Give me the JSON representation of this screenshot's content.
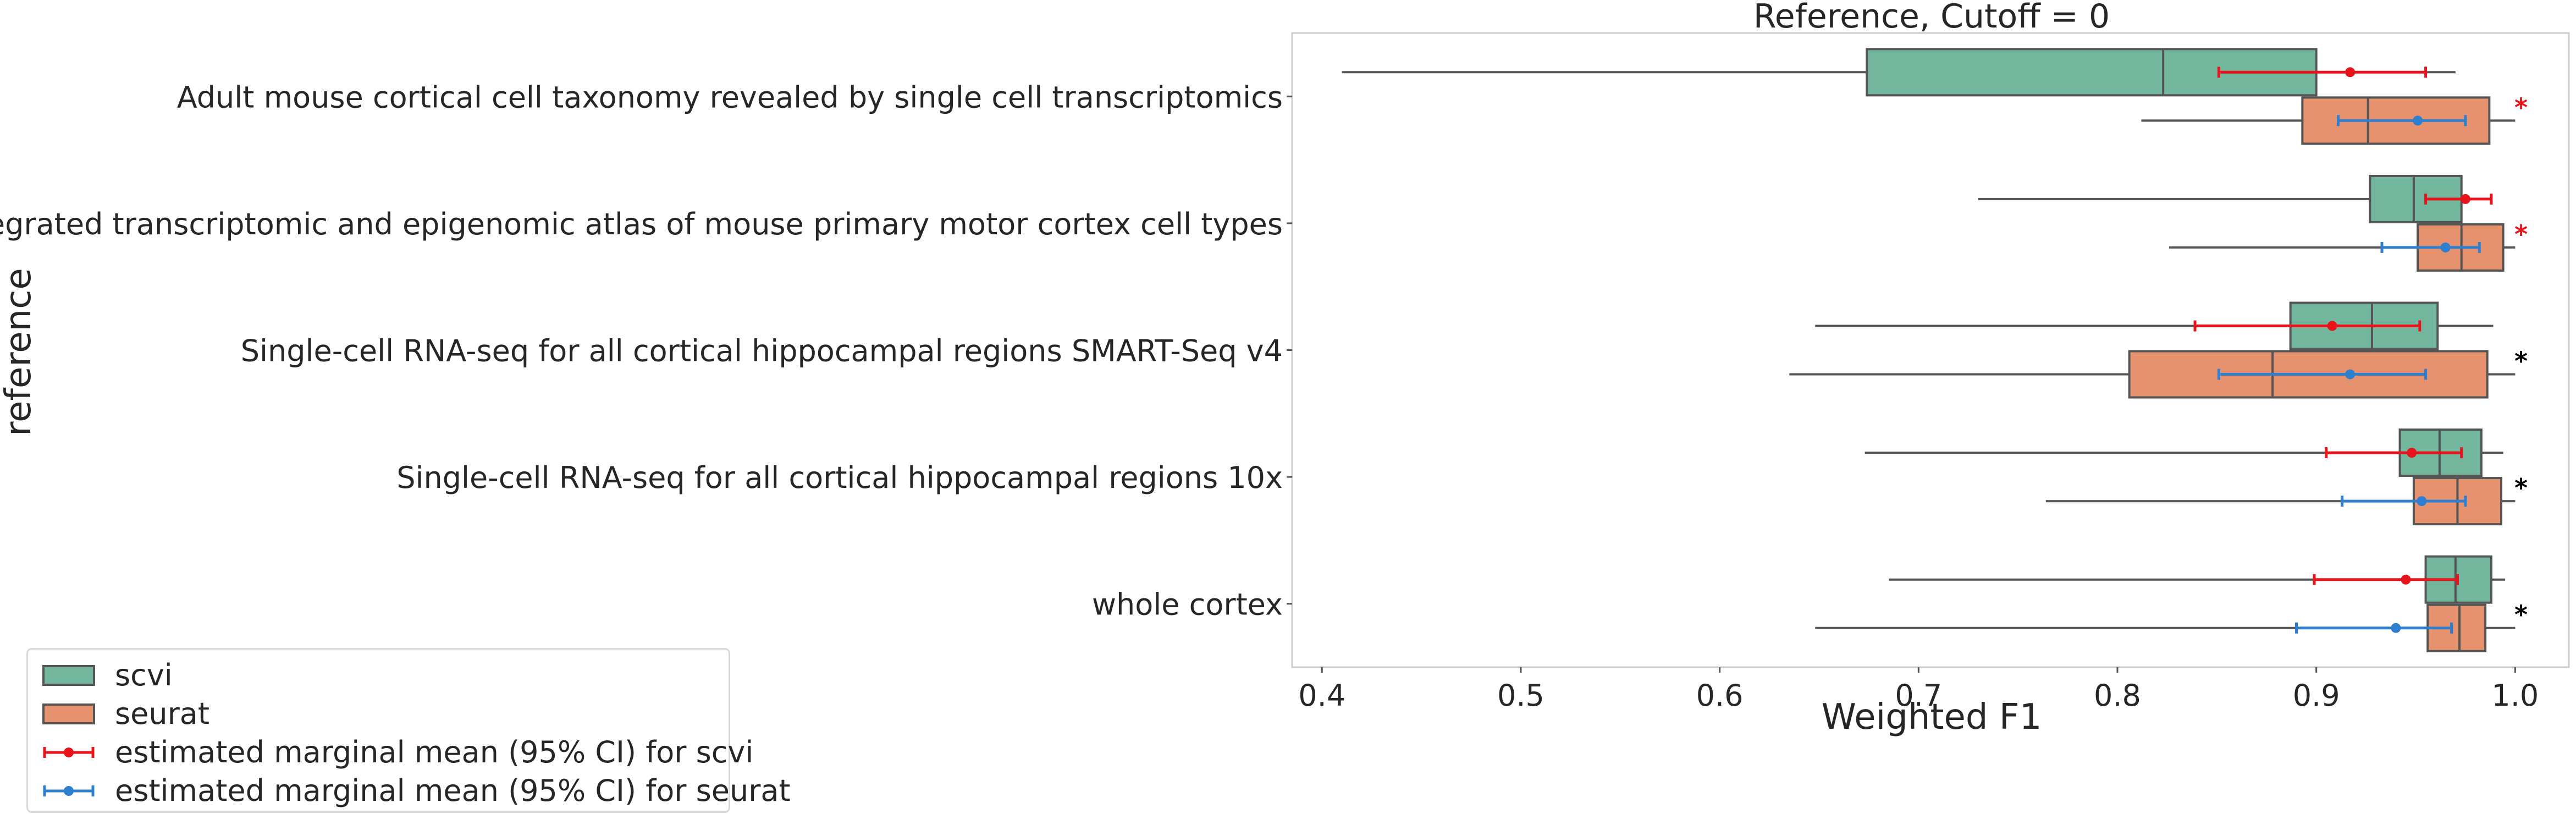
{
  "chart_data": {
    "type": "box",
    "title": "Reference, Cutoff = 0",
    "xlabel": "Weighted F1",
    "ylabel": "reference",
    "xlim": [
      0.385,
      1.027
    ],
    "xticks": [
      "0.4",
      "0.5",
      "0.6",
      "0.7",
      "0.8",
      "0.9",
      "1.0"
    ],
    "grid": false,
    "orientation": "horizontal",
    "categories": [
      "Adult mouse cortical cell taxonomy revealed by single cell transcriptomics",
      "An integrated transcriptomic and epigenomic atlas of mouse primary motor cortex cell types",
      "Single-cell RNA-seq for all cortical  hippocampal regions SMART-Seq v4",
      "Single-cell RNA-seq for all cortical  hippocampal regions 10x",
      "whole cortex"
    ],
    "series": [
      {
        "name": "scvi",
        "color": "#72b69d",
        "boxes": [
          {
            "min": 0.41,
            "q1": 0.674,
            "median": 0.823,
            "q3": 0.9,
            "max": 0.97
          },
          {
            "min": 0.73,
            "q1": 0.927,
            "median": 0.949,
            "q3": 0.973,
            "max": 0.976
          },
          {
            "min": 0.648,
            "q1": 0.887,
            "median": 0.928,
            "q3": 0.961,
            "max": 0.989
          },
          {
            "min": 0.673,
            "q1": 0.942,
            "median": 0.962,
            "q3": 0.983,
            "max": 0.994
          },
          {
            "min": 0.685,
            "q1": 0.955,
            "median": 0.97,
            "q3": 0.988,
            "max": 0.995
          }
        ]
      },
      {
        "name": "seurat",
        "color": "#e7926f",
        "boxes": [
          {
            "min": 0.812,
            "q1": 0.893,
            "median": 0.926,
            "q3": 0.987,
            "max": 1.0
          },
          {
            "min": 0.826,
            "q1": 0.951,
            "median": 0.973,
            "q3": 0.994,
            "max": 1.0
          },
          {
            "min": 0.635,
            "q1": 0.806,
            "median": 0.878,
            "q3": 0.986,
            "max": 1.0
          },
          {
            "min": 0.764,
            "q1": 0.949,
            "median": 0.971,
            "q3": 0.993,
            "max": 1.0
          },
          {
            "min": 0.648,
            "q1": 0.956,
            "median": 0.972,
            "q3": 0.985,
            "max": 1.0
          }
        ]
      }
    ],
    "marginal_means": [
      {
        "name": "estimated marginal mean (95% CI) for scvi",
        "color": "#e8141c",
        "points": [
          {
            "mean": 0.917,
            "lo": 0.851,
            "hi": 0.955
          },
          {
            "mean": 0.975,
            "lo": 0.955,
            "hi": 0.988
          },
          {
            "mean": 0.908,
            "lo": 0.839,
            "hi": 0.952
          },
          {
            "mean": 0.948,
            "lo": 0.905,
            "hi": 0.973
          },
          {
            "mean": 0.945,
            "lo": 0.899,
            "hi": 0.971
          }
        ]
      },
      {
        "name": "estimated marginal mean (95% CI) for seurat",
        "color": "#2f7fd0",
        "points": [
          {
            "mean": 0.951,
            "lo": 0.911,
            "hi": 0.975
          },
          {
            "mean": 0.965,
            "lo": 0.933,
            "hi": 0.982
          },
          {
            "mean": 0.917,
            "lo": 0.851,
            "hi": 0.955
          },
          {
            "mean": 0.953,
            "lo": 0.913,
            "hi": 0.975
          },
          {
            "mean": 0.94,
            "lo": 0.89,
            "hi": 0.968
          }
        ]
      }
    ],
    "significance": [
      {
        "label": "*",
        "color": "#e8141c"
      },
      {
        "label": "*",
        "color": "#e8141c"
      },
      {
        "label": "*",
        "color": "#000000"
      },
      {
        "label": "*",
        "color": "#000000"
      },
      {
        "label": "*",
        "color": "#000000"
      }
    ],
    "legend": {
      "placement": "lower-left",
      "entries": [
        "scvi",
        "seurat",
        "estimated marginal mean (95% CI) for scvi",
        "estimated marginal mean (95% CI) for seurat"
      ]
    }
  }
}
